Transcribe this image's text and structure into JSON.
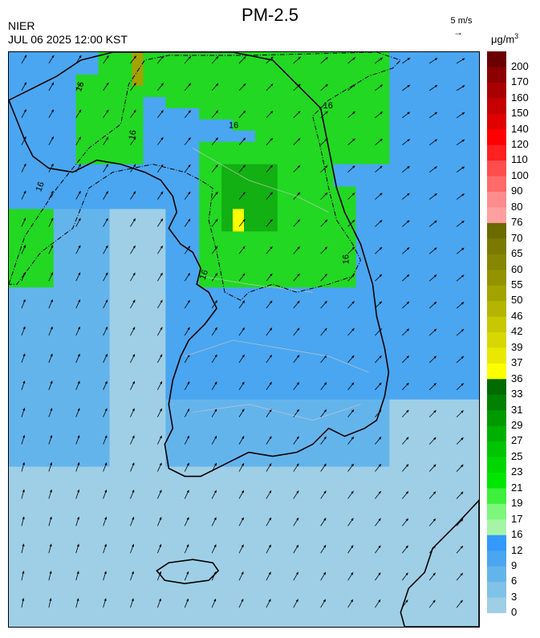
{
  "header": {
    "title": "PM-2.5",
    "agency": "NIER",
    "timestamp": "JUL 06 2025 12:00 KST",
    "wind_reference": "5 m/s",
    "unit": "μg/m",
    "unit_exponent": "3"
  },
  "colorbar": {
    "labels": [
      "200",
      "170",
      "160",
      "150",
      "140",
      "120",
      "110",
      "100",
      "90",
      "80",
      "76",
      "70",
      "65",
      "60",
      "55",
      "50",
      "46",
      "42",
      "39",
      "37",
      "36",
      "33",
      "31",
      "29",
      "27",
      "25",
      "23",
      "21",
      "19",
      "17",
      "16",
      "12",
      "9",
      "6",
      "3",
      "0"
    ],
    "colors": [
      "#6b0000",
      "#8b0000",
      "#a80000",
      "#c40000",
      "#e00000",
      "#ff0000",
      "#ff2020",
      "#ff4d4d",
      "#ff6b6b",
      "#ff8c8c",
      "#ffa0a0",
      "#6b6b00",
      "#7a7a00",
      "#868600",
      "#939300",
      "#a3a300",
      "#b5b500",
      "#c8c800",
      "#d8d800",
      "#e8e800",
      "#ffff00",
      "#006b00",
      "#008000",
      "#009900",
      "#00b000",
      "#00c400",
      "#00d600",
      "#00e600",
      "#3cf03c",
      "#7cf77c",
      "#a6f5a6",
      "#3399ff",
      "#4aa6f0",
      "#64b4ec",
      "#80c2e8",
      "#9ecfe6"
    ]
  },
  "map": {
    "contour_label": "16",
    "colors": {
      "low": "#9ecfe6",
      "mid_low": "#64b4ec",
      "mid": "#4aa6f0",
      "green": "#22d822",
      "dark_green": "#12b012",
      "yellow": "#ffff00",
      "olive": "#a3a300"
    }
  }
}
